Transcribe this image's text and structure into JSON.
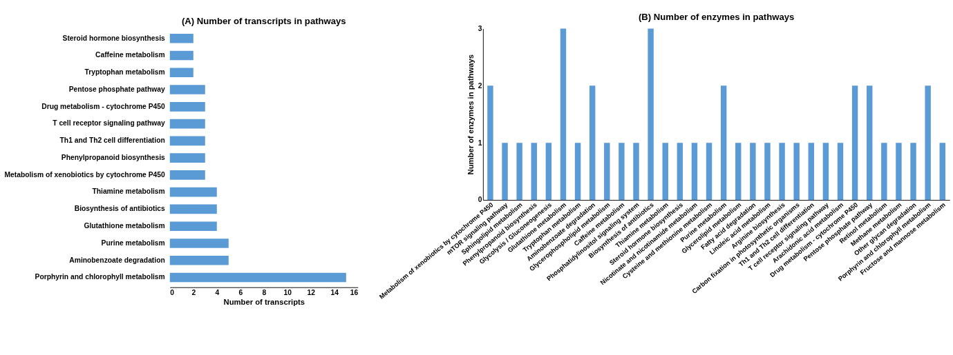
{
  "chart_data": [
    {
      "type": "bar",
      "orientation": "horizontal",
      "title": "(A)  Number of transcripts in pathways",
      "xlabel": "Number of transcripts",
      "categories": [
        "Steroid hormone biosynthesis",
        "Caffeine metabolism",
        "Tryptophan metabolism",
        "Pentose phosphate pathway",
        "Drug metabolism - cytochrome P450",
        "T cell receptor signaling pathway",
        "Th1 and Th2 cell differentiation",
        "Phenylpropanoid biosynthesis",
        "Metabolism of xenobiotics by cytochrome P450",
        "Thiamine metabolism",
        "Biosynthesis of antibiotics",
        "Glutathione metabolism",
        "Purine metabolism",
        "Aminobenzoate degradation",
        "Porphyrin and chlorophyll metabolism"
      ],
      "series": [
        {
          "color": "#5b9bd5",
          "values": [
            2,
            2,
            2,
            3,
            3,
            3,
            3,
            3,
            3,
            4,
            4,
            4,
            5,
            5,
            15
          ]
        }
      ],
      "xlim": [
        0,
        16
      ],
      "xticks": [
        0,
        2,
        4,
        6,
        8,
        10,
        12,
        14,
        16
      ],
      "grid": false,
      "legend": false
    },
    {
      "type": "bar",
      "title": "(B)  Number of enzymes in pathways",
      "ylabel": "Number of enzymes in pathways",
      "categories": [
        "Metabolism of xenobiotics by cytochrome P450",
        "mTOR signaling pathway",
        "Sphingolipid metabolism",
        "Phenylpropanoid biosynthesis",
        "Glycolysis / Gluconeogenesis",
        "Glutathione metabolism",
        "Tryptophan metabolism",
        "Aminobenzoate degradation",
        "Glycerophospholipid metabolism",
        "Caffeine metabolism",
        "Phosphatidylinositol signaling system",
        "Biosynthesis of antibiotics",
        "Thiamine metabolism",
        "Steroid hormone biosynthesis",
        "Nicotinate and nicotinamide metabolism",
        "Cysteine and methionine metabolism",
        "Purine metabolism",
        "Glycerolipid metabolism",
        "Fatty acid degradation",
        "Linoleic acid metabolism",
        "Arginine biosynthesis",
        "Carbon fixation in photosynthetic organisms",
        "Th1 and Th2 cell differentiation",
        "T cell receptor signaling pathway",
        "Arachidonic acid metabolism",
        "Drug metabolism - cytochrome P450",
        "Pentose phosphate pathway",
        "Retinol metabolism",
        "Methane metabolism",
        "Other glycan degradation",
        "Porphyrin and chlorophyll metabolism",
        "Fructose and mannose metabolism"
      ],
      "series": [
        {
          "color": "#5b9bd5",
          "values": [
            2,
            1,
            1,
            1,
            1,
            3,
            1,
            2,
            1,
            1,
            1,
            3,
            1,
            1,
            1,
            1,
            2,
            1,
            1,
            1,
            1,
            1,
            1,
            1,
            1,
            2,
            2,
            1,
            1,
            1,
            2,
            1
          ]
        }
      ],
      "ylim": [
        0,
        3
      ],
      "yticks": [
        0,
        1,
        2,
        3
      ],
      "grid": false,
      "legend": false
    }
  ]
}
